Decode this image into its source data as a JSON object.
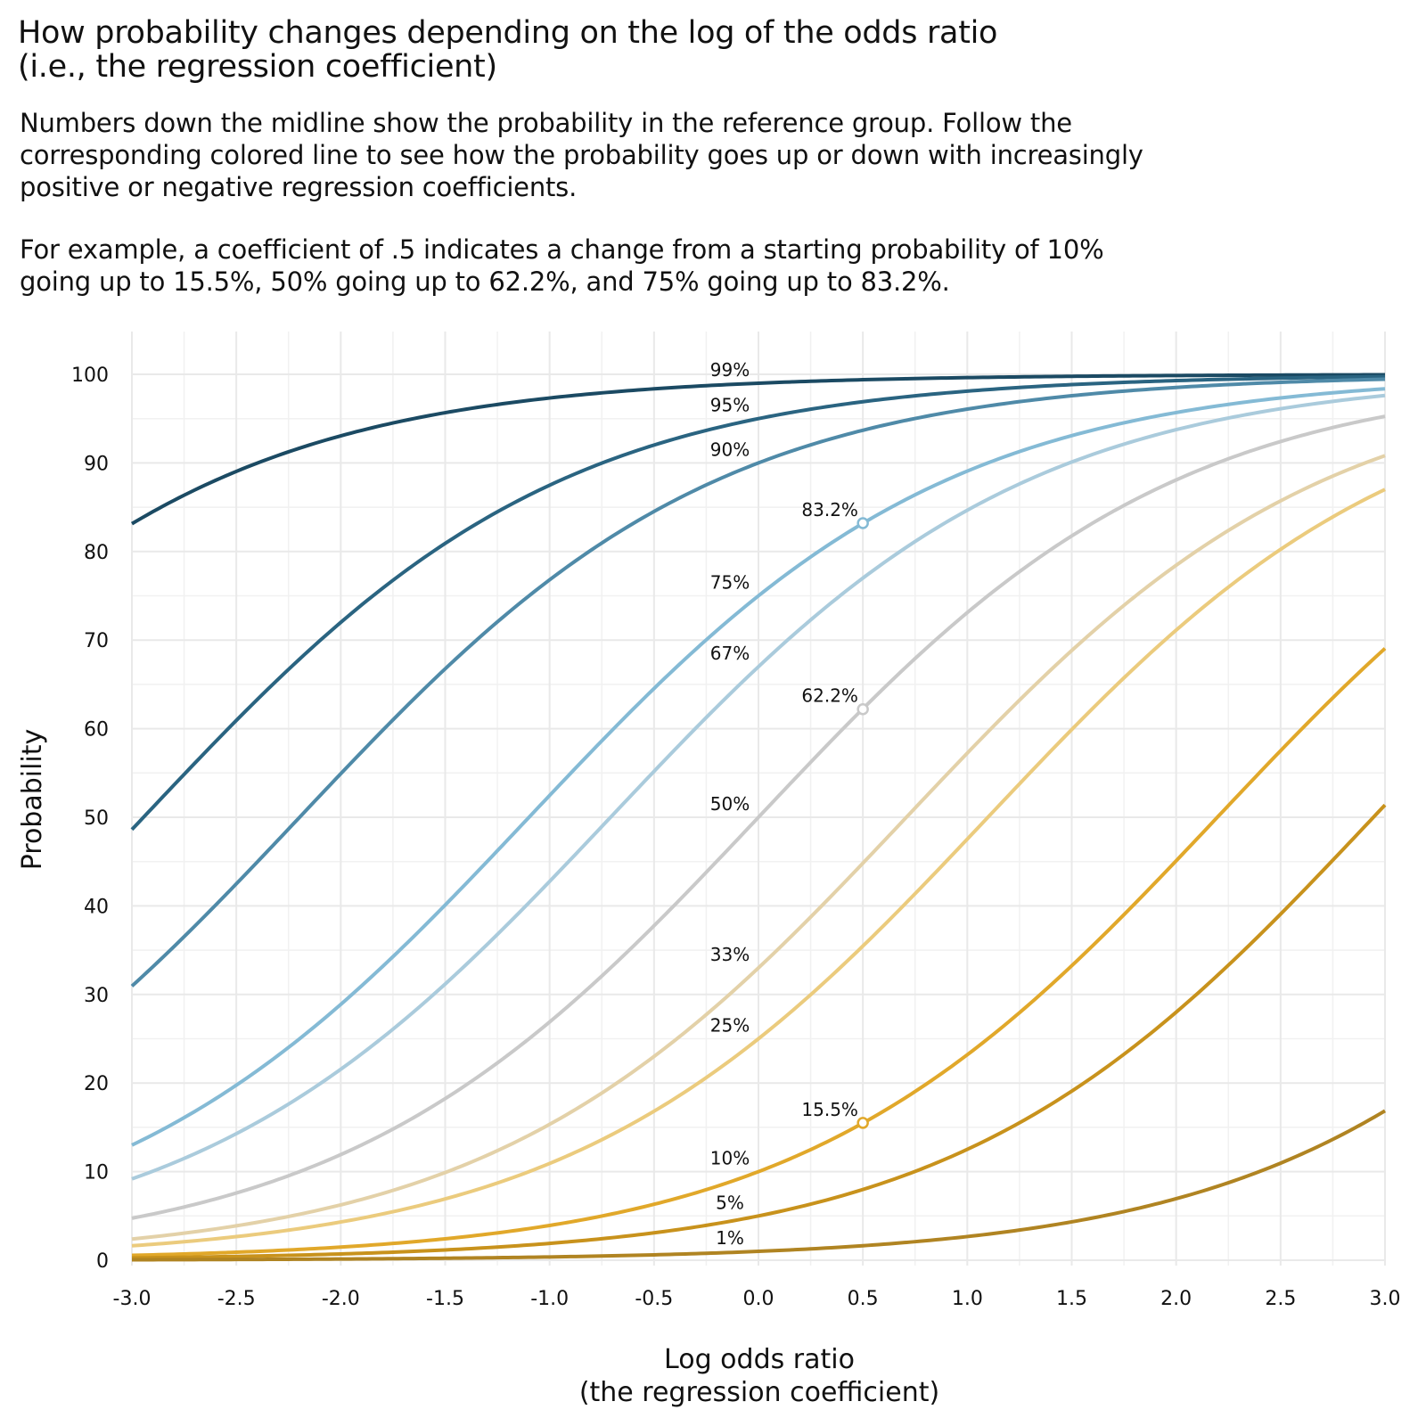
{
  "title_lines": [
    "How probability changes depending on the log of the odds ratio",
    "(i.e., the regression coefficient)"
  ],
  "subtitle_lines": [
    "Numbers down the midline show the probability in the reference group. Follow the",
    "corresponding colored line to see how the probability goes up or down with increasingly",
    "positive or negative regression coefficients.",
    "",
    "For example, a coefficient of .5 indicates a change from a starting probability of 10%",
    "going up to 15.5%, 50% going up to 62.2%, and 75% going up to 83.2%."
  ],
  "chart_data": {
    "type": "line",
    "title": "How probability changes depending on the log of the odds ratio (i.e., the regression coefficient)",
    "xlabel_lines": [
      "Log odds ratio",
      "(the regression coefficient)"
    ],
    "ylabel": "Probability",
    "xlim": [
      -3.0,
      3.0
    ],
    "ylim": [
      0,
      100
    ],
    "x_ticks": [
      -3.0,
      -2.5,
      -2.0,
      -1.5,
      -1.0,
      -0.5,
      0.0,
      0.5,
      1.0,
      1.5,
      2.0,
      2.5,
      3.0
    ],
    "x_tick_labels": [
      "-3.0",
      "-2.5",
      "-2.0",
      "-1.5",
      "-1.0",
      "-0.5",
      "0.0",
      "0.5",
      "1.0",
      "1.5",
      "2.0",
      "2.5",
      "3.0"
    ],
    "y_ticks": [
      0,
      10,
      20,
      30,
      40,
      50,
      60,
      70,
      80,
      90,
      100
    ],
    "y_tick_labels": [
      "0",
      "10",
      "20",
      "30",
      "40",
      "50",
      "60",
      "70",
      "80",
      "90",
      "100"
    ],
    "grid": true,
    "x": [
      -3.0,
      -2.5,
      -2.0,
      -1.5,
      -1.0,
      -0.5,
      0.0,
      0.5,
      1.0,
      1.5,
      2.0,
      2.5,
      3.0
    ],
    "series": [
      {
        "name": "99%",
        "label": "99%",
        "color": "#1b4a63",
        "values": [
          83.1,
          88.9,
          93.1,
          95.7,
          97.3,
          98.4,
          99.0,
          99.4,
          99.6,
          99.8,
          99.9,
          99.9,
          99.9
        ]
      },
      {
        "name": "95%",
        "label": "95%",
        "color": "#2a6481",
        "values": [
          48.6,
          61.0,
          72.0,
          80.9,
          87.5,
          92.0,
          95.0,
          96.9,
          98.1,
          98.8,
          99.3,
          99.6,
          99.7
        ]
      },
      {
        "name": "90%",
        "label": "90%",
        "color": "#4f8aa8",
        "values": [
          31.0,
          42.5,
          54.9,
          66.8,
          76.8,
          84.5,
          90.0,
          93.7,
          96.1,
          97.6,
          98.5,
          99.1,
          99.5
        ]
      },
      {
        "name": "75%",
        "label": "75%",
        "color": "#84bad5",
        "values": [
          13.0,
          19.8,
          28.9,
          40.1,
          52.5,
          64.5,
          75.0,
          83.2,
          89.1,
          93.1,
          95.7,
          97.4,
          98.4
        ]
      },
      {
        "name": "67%",
        "label": "67%",
        "color": "#aacbdc",
        "values": [
          9.2,
          14.3,
          21.6,
          31.2,
          42.8,
          55.2,
          67.0,
          77.0,
          84.7,
          90.1,
          93.7,
          96.1,
          97.6
        ]
      },
      {
        "name": "50%",
        "label": "50%",
        "color": "#c9c9c9",
        "values": [
          4.7,
          7.6,
          11.9,
          18.2,
          26.9,
          37.8,
          50.0,
          62.2,
          73.1,
          81.8,
          88.1,
          92.4,
          95.3
        ]
      },
      {
        "name": "33%",
        "label": "33%",
        "color": "#e3d1a8",
        "values": [
          2.4,
          3.9,
          6.3,
          10.1,
          15.4,
          23.0,
          33.0,
          44.8,
          57.2,
          68.8,
          78.4,
          85.7,
          90.8
        ]
      },
      {
        "name": "25%",
        "label": "25%",
        "color": "#ebcb7d",
        "values": [
          1.6,
          2.7,
          4.3,
          6.9,
          10.9,
          16.8,
          25.0,
          35.5,
          47.5,
          59.9,
          71.1,
          80.3,
          87.0
        ]
      },
      {
        "name": "10%",
        "label": "10%",
        "color": "#e1a82a",
        "values": [
          0.6,
          0.9,
          1.5,
          2.4,
          3.9,
          6.3,
          10.0,
          15.5,
          23.2,
          33.2,
          45.1,
          57.5,
          69.1
        ]
      },
      {
        "name": "5%",
        "label": "5%",
        "color": "#c8921c",
        "values": [
          0.3,
          0.4,
          0.7,
          1.2,
          1.9,
          3.1,
          5.0,
          8.0,
          12.5,
          18.8,
          28.0,
          39.0,
          51.4
        ]
      },
      {
        "name": "1%",
        "label": "1%",
        "color": "#b08422",
        "values": [
          0.1,
          0.1,
          0.1,
          0.2,
          0.4,
          0.6,
          1.0,
          1.6,
          2.7,
          4.3,
          6.9,
          10.9,
          16.9
        ]
      }
    ],
    "highlight_points": [
      {
        "x": 0.5,
        "y": 83.2,
        "label": "83.2%",
        "color": "#84bad5"
      },
      {
        "x": 0.5,
        "y": 62.2,
        "label": "62.2%",
        "color": "#c9c9c9"
      },
      {
        "x": 0.5,
        "y": 15.5,
        "label": "15.5%",
        "color": "#e1a82a"
      }
    ]
  }
}
